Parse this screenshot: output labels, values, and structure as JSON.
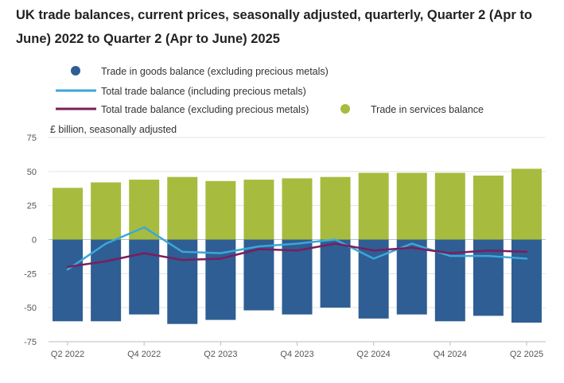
{
  "chart_data": {
    "type": "bar",
    "title": "UK trade balances, current prices, seasonally adjusted, quarterly, Quarter 2 (Apr to June) 2022 to Quarter 2 (Apr to June) 2025",
    "ylabel": "£ billion, seasonally adjusted",
    "xlabel": "",
    "ylim": [
      -75,
      75
    ],
    "yticks": [
      75,
      50,
      25,
      0,
      -25,
      -50,
      -75
    ],
    "yticks_labels": [
      "75",
      "50",
      "25",
      "0",
      "-25",
      "-50",
      "-75"
    ],
    "categories": [
      "Q2 2022",
      "Q3 2022",
      "Q4 2022",
      "Q1 2023",
      "Q2 2023",
      "Q3 2023",
      "Q4 2023",
      "Q1 2024",
      "Q2 2024",
      "Q3 2024",
      "Q4 2024",
      "Q1 2025",
      "Q2 2025"
    ],
    "x_tick_labels": [
      "Q2 2022",
      "",
      "Q4 2022",
      "",
      "Q2 2023",
      "",
      "Q4 2023",
      "",
      "Q2 2024",
      "",
      "Q4 2024",
      "",
      "Q2 2025"
    ],
    "stacked": true,
    "series": [
      {
        "name": "Trade in goods balance (excluding precious metals)",
        "kind": "bar",
        "color": "#2e5e93",
        "values": [
          -60,
          -60,
          -55,
          -62,
          -59,
          -52,
          -55,
          -50,
          -58,
          -55,
          -60,
          -56,
          -61
        ]
      },
      {
        "name": "Trade in services balance",
        "kind": "bar",
        "color": "#a7bc3e",
        "values": [
          38,
          42,
          44,
          46,
          43,
          44,
          45,
          46,
          49,
          49,
          49,
          47,
          52
        ]
      },
      {
        "name": "Total trade balance (including precious metals)",
        "kind": "line",
        "color": "#3ca6d9",
        "values": [
          -22,
          -3,
          9,
          -9,
          -10,
          -5,
          -3,
          0,
          -14,
          -3,
          -12,
          -12,
          -14
        ]
      },
      {
        "name": "Total trade balance (excluding precious metals)",
        "kind": "line",
        "color": "#7b1d5d",
        "values": [
          -20,
          -16,
          -10,
          -15,
          -14,
          -7,
          -8,
          -3,
          -8,
          -6,
          -10,
          -8,
          -9
        ]
      }
    ],
    "legend": [
      {
        "label": "Trade in goods balance (excluding precious metals)",
        "marker": "circle",
        "color": "#2e5e93"
      },
      {
        "label": "Total trade balance (including precious metals)",
        "marker": "line",
        "color": "#3ca6d9"
      },
      {
        "label": "Total trade balance (excluding precious metals)",
        "marker": "line",
        "color": "#7b1d5d"
      },
      {
        "label": "Trade in services balance",
        "marker": "circle",
        "color": "#a7bc3e"
      }
    ],
    "legend_position": "top-left",
    "grid": true
  }
}
